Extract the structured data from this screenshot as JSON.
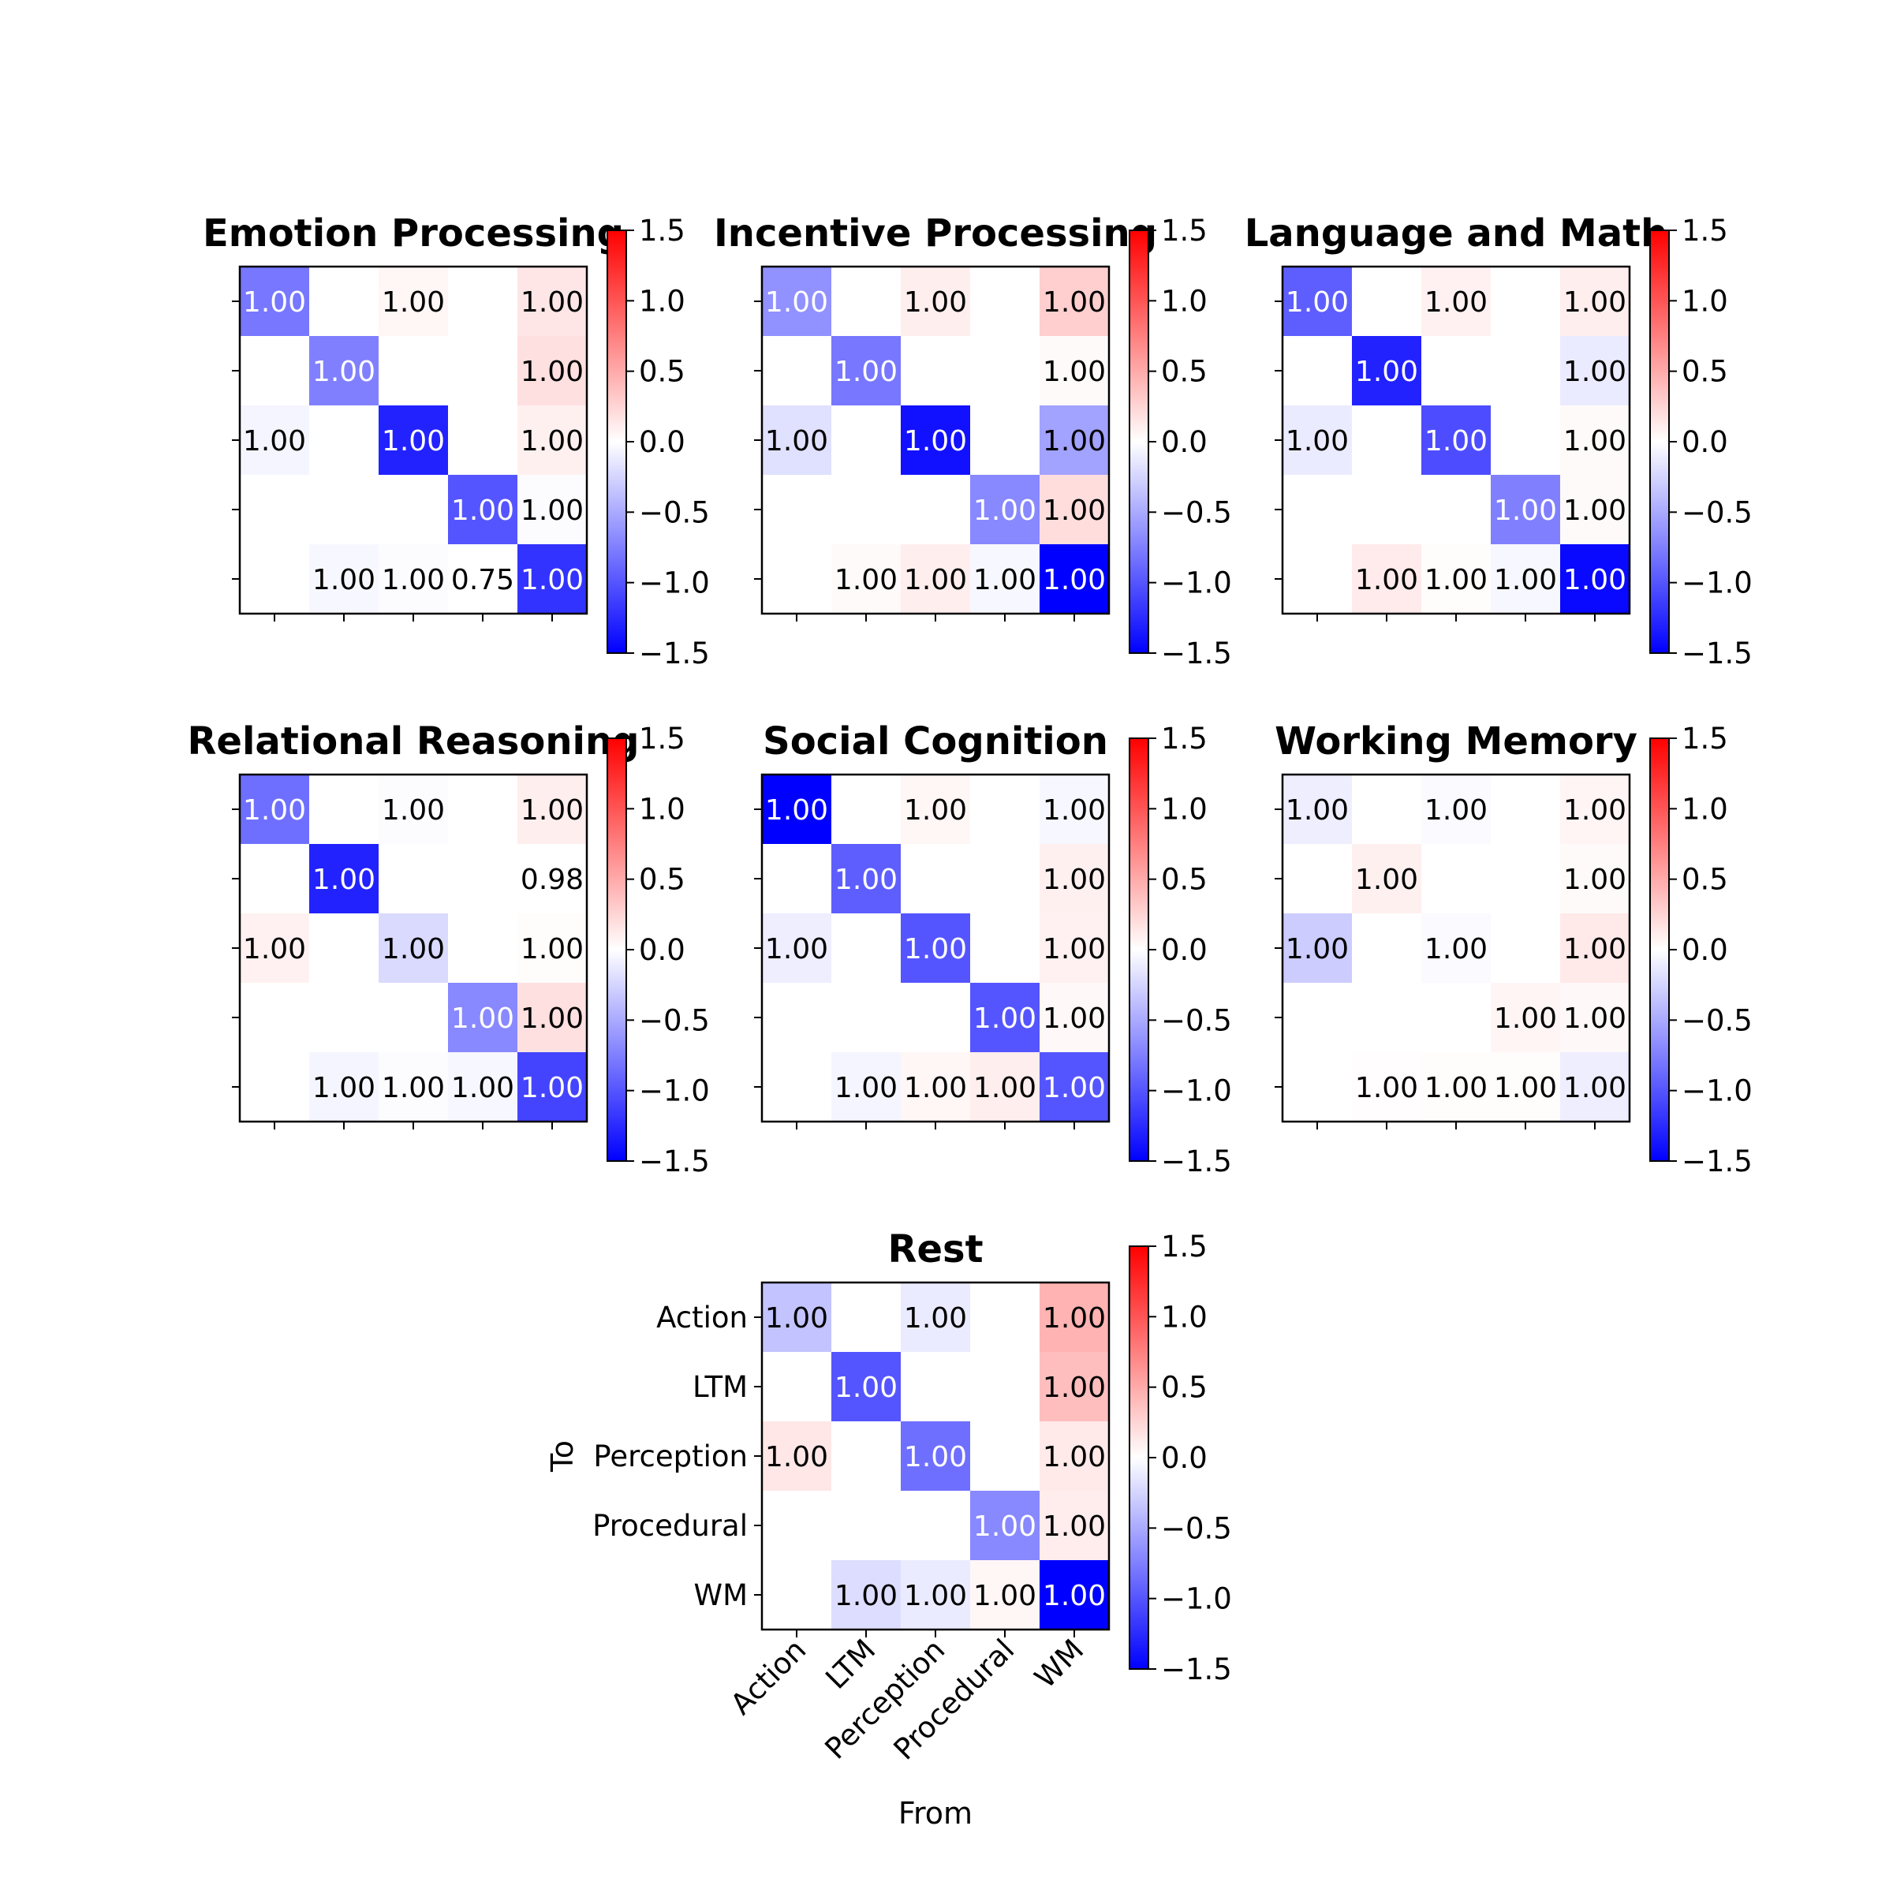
{
  "chart_data": {
    "type": "heatmap",
    "colormap": "bwr",
    "colorbar_ticks": [
      1.5,
      1.0,
      0.5,
      0.0,
      -0.5,
      -1.0,
      -1.5
    ],
    "colorbar_tick_labels": [
      "1.5",
      "1.0",
      "0.5",
      "0.0",
      "−0.5",
      "−1.0",
      "−1.5"
    ],
    "clim": [
      -1.5,
      1.5
    ],
    "categories": [
      "Action",
      "LTM",
      "Perception",
      "Procedural",
      "WM"
    ],
    "xlabel": "From",
    "ylabel": "To",
    "panels": [
      {
        "title": "Emotion Processing",
        "values": [
          [
            -0.8,
            null,
            0.05,
            null,
            0.15
          ],
          [
            null,
            -0.75,
            null,
            null,
            0.18
          ],
          [
            -0.06,
            null,
            -1.3,
            null,
            0.09
          ],
          [
            null,
            null,
            null,
            -1.0,
            -0.02
          ],
          [
            null,
            -0.05,
            -0.02,
            0,
            -1.2
          ]
        ],
        "labels": [
          [
            "1.00",
            "",
            "1.00",
            "",
            "1.00"
          ],
          [
            "",
            "1.00",
            "",
            "",
            "1.00"
          ],
          [
            "1.00",
            "",
            "1.00",
            "",
            "1.00"
          ],
          [
            "",
            "",
            "",
            "1.00",
            "1.00"
          ],
          [
            "",
            "1.00",
            "1.00",
            "0.75",
            "1.00"
          ]
        ]
      },
      {
        "title": "Incentive Processing",
        "values": [
          [
            -0.65,
            null,
            0.1,
            null,
            0.28
          ],
          [
            null,
            -0.8,
            null,
            null,
            0.03
          ],
          [
            -0.18,
            null,
            -1.4,
            null,
            -0.55
          ],
          [
            null,
            null,
            null,
            -0.7,
            0.2
          ],
          [
            null,
            0.03,
            0.1,
            -0.05,
            -1.5
          ]
        ],
        "labels": [
          [
            "1.00",
            "",
            "1.00",
            "",
            "1.00"
          ],
          [
            "",
            "1.00",
            "",
            "",
            "1.00"
          ],
          [
            "1.00",
            "",
            "1.00",
            "",
            "1.00"
          ],
          [
            "",
            "",
            "",
            "1.00",
            "1.00"
          ],
          [
            "",
            "1.00",
            "1.00",
            "1.00",
            "1.00"
          ]
        ]
      },
      {
        "title": "Language and Math",
        "values": [
          [
            -0.95,
            null,
            0.08,
            null,
            0.1
          ],
          [
            null,
            -1.3,
            null,
            null,
            -0.12
          ],
          [
            -0.12,
            null,
            -1.05,
            null,
            0.03
          ],
          [
            null,
            null,
            null,
            -0.75,
            0.03
          ],
          [
            null,
            0.12,
            0.02,
            -0.05,
            -1.45
          ]
        ],
        "labels": [
          [
            "1.00",
            "",
            "1.00",
            "",
            "1.00"
          ],
          [
            "",
            "1.00",
            "",
            "",
            "1.00"
          ],
          [
            "1.00",
            "",
            "1.00",
            "",
            "1.00"
          ],
          [
            "",
            "",
            "",
            "1.00",
            "1.00"
          ],
          [
            "",
            "1.00",
            "1.00",
            "1.00",
            "1.00"
          ]
        ]
      },
      {
        "title": "Relational Reasoning",
        "values": [
          [
            -0.85,
            null,
            -0.02,
            null,
            0.1
          ],
          [
            null,
            -1.3,
            null,
            null,
            0
          ],
          [
            0.08,
            null,
            -0.22,
            null,
            0.02
          ],
          [
            null,
            null,
            null,
            -0.7,
            0.18
          ],
          [
            null,
            -0.06,
            -0.02,
            -0.05,
            -1.1
          ]
        ],
        "labels": [
          [
            "1.00",
            "",
            "1.00",
            "",
            "1.00"
          ],
          [
            "",
            "1.00",
            "",
            "",
            "0.98"
          ],
          [
            "1.00",
            "",
            "1.00",
            "",
            "1.00"
          ],
          [
            "",
            "",
            "",
            "1.00",
            "1.00"
          ],
          [
            "",
            "1.00",
            "1.00",
            "1.00",
            "1.00"
          ]
        ]
      },
      {
        "title": "Social Cognition",
        "values": [
          [
            -1.5,
            null,
            0.05,
            null,
            -0.05
          ],
          [
            null,
            -0.95,
            null,
            null,
            0.09
          ],
          [
            -0.1,
            null,
            -1.0,
            null,
            0.08
          ],
          [
            null,
            null,
            null,
            -1.0,
            0.04
          ],
          [
            null,
            -0.06,
            0.05,
            0.1,
            -1.0
          ]
        ],
        "labels": [
          [
            "1.00",
            "",
            "1.00",
            "",
            "1.00"
          ],
          [
            "",
            "1.00",
            "",
            "",
            "1.00"
          ],
          [
            "1.00",
            "",
            "1.00",
            "",
            "1.00"
          ],
          [
            "",
            "",
            "",
            "1.00",
            "1.00"
          ],
          [
            "",
            "1.00",
            "1.00",
            "1.00",
            "1.00"
          ]
        ]
      },
      {
        "title": "Working Memory",
        "values": [
          [
            -0.1,
            null,
            -0.03,
            null,
            0.06
          ],
          [
            null,
            0.09,
            null,
            null,
            0.03
          ],
          [
            -0.3,
            null,
            -0.03,
            null,
            0.13
          ],
          [
            null,
            null,
            null,
            0.06,
            0.04
          ],
          [
            null,
            0.01,
            0.02,
            0.02,
            -0.1
          ]
        ],
        "labels": [
          [
            "1.00",
            "",
            "1.00",
            "",
            "1.00"
          ],
          [
            "",
            "1.00",
            "",
            "",
            "1.00"
          ],
          [
            "1.00",
            "",
            "1.00",
            "",
            "1.00"
          ],
          [
            "",
            "",
            "",
            "1.00",
            "1.00"
          ],
          [
            "",
            "1.00",
            "1.00",
            "1.00",
            "1.00"
          ]
        ]
      },
      {
        "title": "Rest",
        "values": [
          [
            -0.35,
            null,
            -0.12,
            null,
            0.45
          ],
          [
            null,
            -1.0,
            null,
            null,
            0.38
          ],
          [
            0.14,
            null,
            -0.85,
            null,
            0.13
          ],
          [
            null,
            null,
            null,
            -0.7,
            0.11
          ],
          [
            null,
            -0.2,
            -0.12,
            0.05,
            -1.5
          ]
        ],
        "labels": [
          [
            "1.00",
            "",
            "1.00",
            "",
            "1.00"
          ],
          [
            "",
            "1.00",
            "",
            "",
            "1.00"
          ],
          [
            "1.00",
            "",
            "1.00",
            "",
            "1.00"
          ],
          [
            "",
            "",
            "",
            "1.00",
            "1.00"
          ],
          [
            "",
            "1.00",
            "1.00",
            "1.00",
            "1.00"
          ]
        ]
      }
    ]
  }
}
